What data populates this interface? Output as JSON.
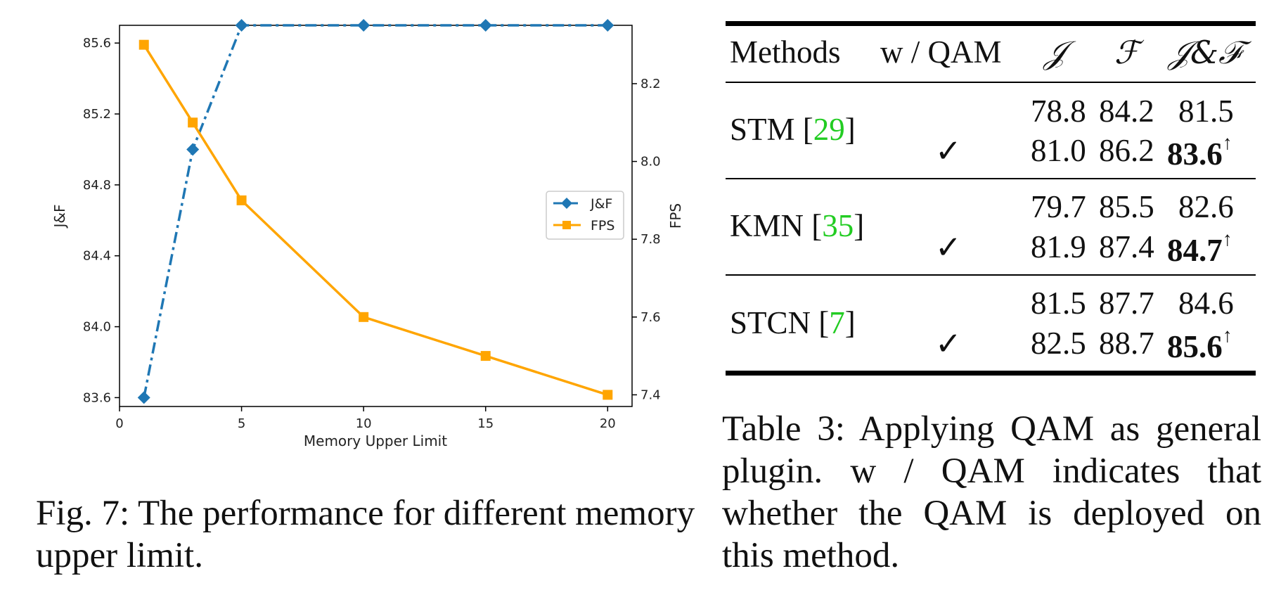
{
  "chart_data": {
    "type": "line",
    "xlabel": "Memory Upper Limit",
    "ylabel_left": "J&F",
    "ylabel_right": "FPS",
    "xlim": [
      0,
      21
    ],
    "xticks": [
      0,
      5,
      10,
      15,
      20
    ],
    "ylim_left": [
      83.55,
      85.7
    ],
    "yticks_left": [
      83.6,
      84.0,
      84.4,
      84.8,
      85.2,
      85.6
    ],
    "ylim_right": [
      7.37,
      8.35
    ],
    "yticks_right": [
      7.4,
      7.6,
      7.8,
      8.0,
      8.2
    ],
    "legend_position": "center-right",
    "series": [
      {
        "name": "J&F",
        "axis": "left",
        "color": "#1f77b4",
        "marker": "diamond",
        "linestyle": "dashdot",
        "x": [
          1,
          3,
          5,
          10,
          15,
          20
        ],
        "values": [
          83.6,
          85.0,
          85.7,
          85.7,
          85.7,
          85.7
        ]
      },
      {
        "name": "FPS",
        "axis": "right",
        "color": "#ffa500",
        "marker": "square",
        "linestyle": "solid",
        "x": [
          1,
          3,
          5,
          10,
          15,
          20
        ],
        "values": [
          8.3,
          8.1,
          7.9,
          7.6,
          7.5,
          7.4
        ]
      }
    ]
  },
  "fig_caption": {
    "label": "Fig. 7:",
    "text": "The performance for different memory upper limit."
  },
  "table": {
    "headers": [
      "Methods",
      "w / QAM",
      "𝒥",
      "ℱ",
      "𝒥&ℱ"
    ],
    "groups": [
      {
        "method": "STM",
        "cite": "29",
        "rows": [
          {
            "qam": "",
            "j": "78.8",
            "f": "84.2",
            "jf": "81.5",
            "bold": false,
            "arrow": ""
          },
          {
            "qam": "✓",
            "j": "81.0",
            "f": "86.2",
            "jf": "83.6",
            "bold": true,
            "arrow": "↑"
          }
        ]
      },
      {
        "method": "KMN",
        "cite": "35",
        "rows": [
          {
            "qam": "",
            "j": "79.7",
            "f": "85.5",
            "jf": "82.6",
            "bold": false,
            "arrow": ""
          },
          {
            "qam": "✓",
            "j": "81.9",
            "f": "87.4",
            "jf": "84.7",
            "bold": true,
            "arrow": "↑"
          }
        ]
      },
      {
        "method": "STCN",
        "cite": "7",
        "rows": [
          {
            "qam": "",
            "j": "81.5",
            "f": "87.7",
            "jf": "84.6",
            "bold": false,
            "arrow": ""
          },
          {
            "qam": "✓",
            "j": "82.5",
            "f": "88.7",
            "jf": "85.6",
            "bold": true,
            "arrow": "↑"
          }
        ]
      }
    ]
  },
  "table_caption": {
    "label": "Table 3:",
    "text": "Applying QAM as general plugin. w / QAM indicates that whether the QAM is deployed on this method."
  }
}
